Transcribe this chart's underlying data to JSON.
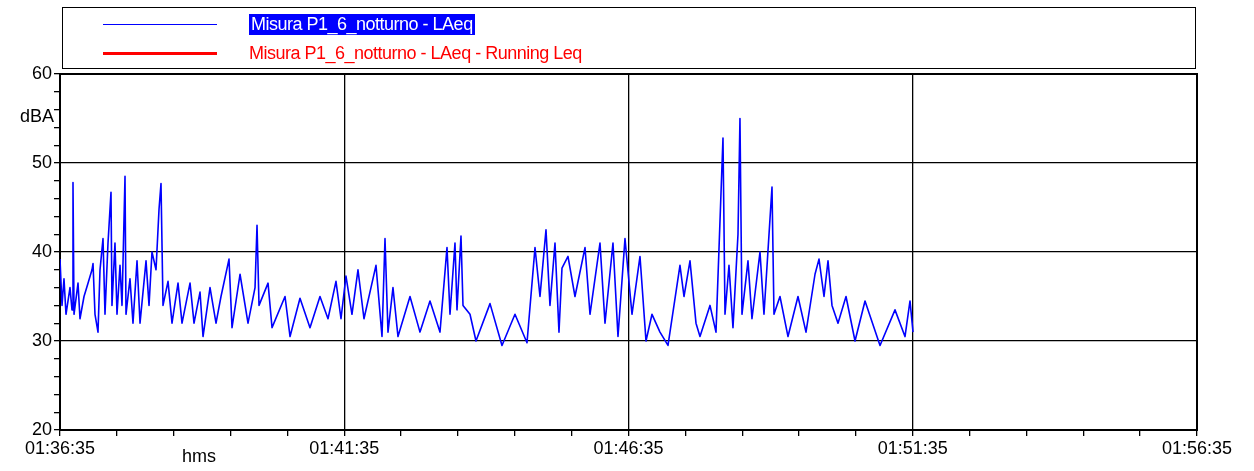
{
  "chart_data": {
    "type": "line",
    "xlabel": "hms",
    "ylabel": "dBA",
    "legend": "top",
    "grid": true,
    "marker": "none",
    "line_style": "solid",
    "xlim": [
      1.60972,
      1.94306
    ],
    "xticks": [
      {
        "value": 1.60972,
        "label": "01:36:35"
      },
      {
        "value": 1.62639,
        "label": null
      },
      {
        "value": 1.64306,
        "label": null
      },
      {
        "value": 1.65972,
        "label": null
      },
      {
        "value": 1.67639,
        "label": null
      },
      {
        "value": 1.69306,
        "label": "01:41:35"
      },
      {
        "value": 1.70972,
        "label": null
      },
      {
        "value": 1.72639,
        "label": null
      },
      {
        "value": 1.74306,
        "label": null
      },
      {
        "value": 1.75972,
        "label": null
      },
      {
        "value": 1.77639,
        "label": "01:46:35"
      },
      {
        "value": 1.79306,
        "label": null
      },
      {
        "value": 1.80972,
        "label": null
      },
      {
        "value": 1.82639,
        "label": null
      },
      {
        "value": 1.84306,
        "label": null
      },
      {
        "value": 1.85972,
        "label": "01:51:35"
      },
      {
        "value": 1.87639,
        "label": null
      },
      {
        "value": 1.89306,
        "label": null
      },
      {
        "value": 1.90972,
        "label": null
      },
      {
        "value": 1.92639,
        "label": null
      },
      {
        "value": 1.94306,
        "label": "01:56:35"
      }
    ],
    "ylim": [
      20,
      60
    ],
    "yticks": [
      20,
      {
        "value": 22,
        "label": null
      },
      {
        "value": 24,
        "label": null
      },
      {
        "value": 26,
        "label": null
      },
      {
        "value": 28,
        "label": null
      },
      30,
      {
        "value": 32,
        "label": null
      },
      {
        "value": 34,
        "label": null
      },
      {
        "value": 36,
        "label": null
      },
      {
        "value": 38,
        "label": null
      },
      40,
      {
        "value": 42,
        "label": null
      },
      {
        "value": 44,
        "label": null
      },
      {
        "value": 46,
        "label": null
      },
      {
        "value": 48,
        "label": null
      },
      50,
      {
        "value": 52,
        "label": null
      },
      {
        "value": 54,
        "label": null
      },
      {
        "value": 56,
        "label": null
      },
      {
        "value": 58,
        "label": null
      },
      60
    ],
    "series": [
      {
        "name": "Misura P1_6_notturno - LAeq",
        "color": "#0000ff",
        "x": [
          1.60972,
          1.61031,
          1.61089,
          1.61148,
          1.61265,
          1.61324,
          1.61353,
          1.61383,
          1.615,
          1.61558,
          1.61676,
          1.61793,
          1.6191,
          1.6194,
          1.61998,
          1.62086,
          1.62145,
          1.62233,
          1.62291,
          1.62379,
          1.62467,
          1.62496,
          1.62584,
          1.62643,
          1.62731,
          1.6279,
          1.62878,
          1.62907,
          1.63024,
          1.63112,
          1.6323,
          1.63318,
          1.63494,
          1.63582,
          1.63669,
          1.63787,
          1.63875,
          1.63933,
          1.63992,
          1.64139,
          1.64256,
          1.64432,
          1.64549,
          1.64784,
          1.64901,
          1.65077,
          1.65165,
          1.6537,
          1.65546,
          1.65692,
          1.65927,
          1.66015,
          1.6625,
          1.66484,
          1.6669,
          1.66748,
          1.66807,
          1.67071,
          1.67188,
          1.67569,
          1.67716,
          1.68008,
          1.68301,
          1.68594,
          1.68829,
          1.69063,
          1.6921,
          1.69356,
          1.69532,
          1.69708,
          1.69884,
          1.70236,
          1.70412,
          1.705,
          1.70588,
          1.70734,
          1.70881,
          1.71233,
          1.71526,
          1.71819,
          1.72112,
          1.72318,
          1.72406,
          1.72552,
          1.72611,
          1.72728,
          1.72787,
          1.72992,
          1.73168,
          1.73579,
          1.7393,
          1.74311,
          1.74663,
          1.74898,
          1.75044,
          1.7522,
          1.75337,
          1.75484,
          1.75601,
          1.75689,
          1.75865,
          1.7607,
          1.76364,
          1.7651,
          1.76803,
          1.7695,
          1.77184,
          1.77331,
          1.77536,
          1.77741,
          1.77976,
          1.78152,
          1.78328,
          1.78562,
          1.78797,
          1.79148,
          1.79266,
          1.79442,
          1.79618,
          1.79735,
          1.80028,
          1.80204,
          1.80409,
          1.80468,
          1.80585,
          1.80702,
          1.80849,
          1.80907,
          1.80966,
          1.81142,
          1.81259,
          1.81494,
          1.81611,
          1.81846,
          1.81904,
          1.8208,
          1.82315,
          1.82608,
          1.82843,
          1.83107,
          1.83224,
          1.83371,
          1.83488,
          1.83605,
          1.83781,
          1.84016,
          1.8428,
          1.84573,
          1.85013,
          1.85452,
          1.85745,
          1.85892,
          1.8598
        ],
        "values": [
          39.2,
          34,
          37,
          33,
          36,
          33.5,
          47.8,
          33,
          36.5,
          32.5,
          35,
          36.5,
          38,
          38.7,
          33,
          31,
          38,
          41.5,
          33,
          41,
          46.7,
          34,
          41,
          33,
          38.5,
          34,
          48.5,
          33,
          37,
          32,
          39,
          32,
          39,
          34,
          40,
          38,
          44.8,
          47.7,
          34,
          36.7,
          32,
          36.5,
          32,
          36.5,
          32,
          35.5,
          30.5,
          36,
          32,
          35,
          39.2,
          31.5,
          37.5,
          32,
          36,
          43,
          34,
          36.5,
          31.5,
          35,
          30.5,
          34.8,
          31.5,
          35,
          32.5,
          36.7,
          32.5,
          37.3,
          33,
          38,
          32.5,
          38.5,
          30.5,
          41.5,
          31,
          36,
          30.5,
          35,
          31,
          34.5,
          31,
          40.5,
          33,
          41,
          33.5,
          41.8,
          34,
          33,
          30,
          34.2,
          29.5,
          33,
          29.8,
          40.5,
          35,
          42.5,
          34,
          41,
          31,
          38.2,
          39.5,
          35,
          40.5,
          33,
          41,
          32,
          41,
          30.5,
          41.5,
          33,
          39.5,
          30,
          33,
          31,
          29.5,
          38.5,
          35,
          39,
          32,
          30.5,
          34,
          31,
          52.8,
          33,
          38.5,
          31.5,
          42,
          55,
          33,
          39,
          32.5,
          40,
          33,
          47.3,
          33,
          35,
          30.5,
          35,
          31,
          37.5,
          39.2,
          35,
          39,
          34,
          32,
          35,
          30,
          34.5,
          29.5,
          33.5,
          30.5,
          34.5,
          31
        ]
      },
      {
        "name": "Misura P1_6_notturno - LAeq - Running Leq",
        "color": "#ff0000"
      }
    ]
  }
}
